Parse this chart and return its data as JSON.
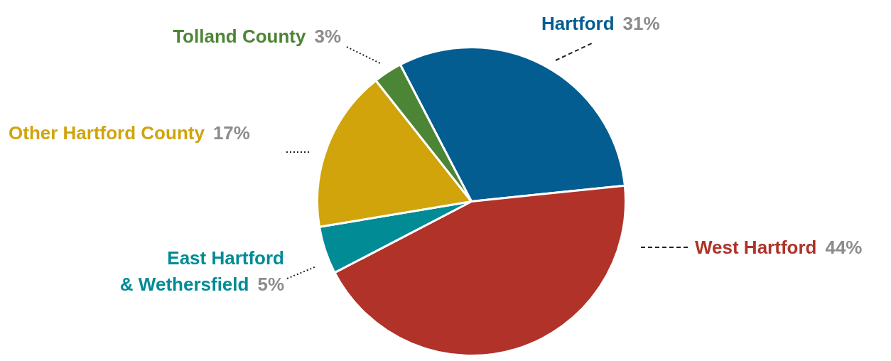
{
  "chart_data": {
    "type": "pie",
    "categories": [
      "Hartford",
      "West Hartford",
      "East Hartford & Wethersfield",
      "Other Hartford County",
      "Tolland County"
    ],
    "values": [
      31,
      44,
      5,
      17,
      3
    ],
    "value_labels": [
      "31%",
      "44%",
      "5%",
      "17%",
      "3%"
    ],
    "colors": [
      "#045d91",
      "#b03228",
      "#008b95",
      "#d0a40a",
      "#4c8535"
    ],
    "legend": false
  }
}
